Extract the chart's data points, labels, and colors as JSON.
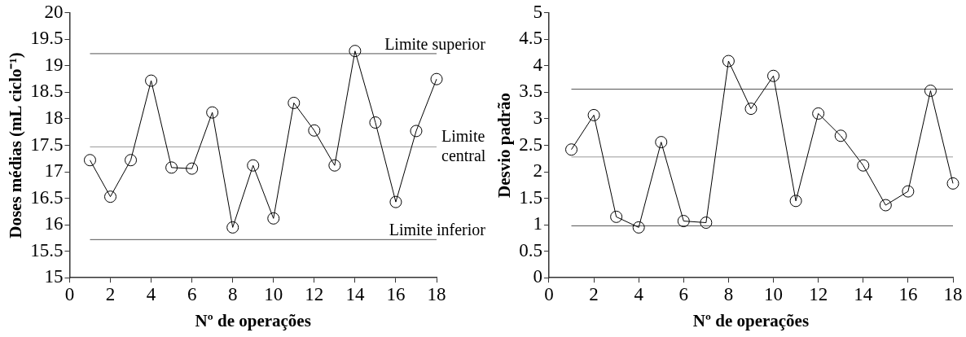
{
  "chart_data": [
    {
      "type": "line",
      "xlabel": "Nº de operações",
      "ylabel": "Doses médias (mL ciclo⁻¹)",
      "x": [
        1,
        2,
        3,
        4,
        5,
        6,
        7,
        8,
        9,
        10,
        11,
        12,
        13,
        14,
        15,
        16,
        17,
        18
      ],
      "series": [
        {
          "color": "#000000",
          "values": [
            17.22,
            16.53,
            17.22,
            18.72,
            17.08,
            17.06,
            18.12,
            15.95,
            17.12,
            16.12,
            18.3,
            17.78,
            17.12,
            19.28,
            17.93,
            16.43,
            17.77,
            18.75
          ]
        }
      ],
      "xlim": [
        0,
        18
      ],
      "xticks": [
        0,
        2,
        4,
        6,
        8,
        10,
        12,
        14,
        16,
        18
      ],
      "ylim": [
        15,
        20
      ],
      "yticks": [
        15,
        15.5,
        16,
        16.5,
        17,
        17.5,
        18,
        18.5,
        19,
        19.5,
        20
      ],
      "ref_lines": [
        {
          "axis": "y",
          "value": 19.23,
          "label": "Limite superior",
          "color": "#555555"
        },
        {
          "axis": "y",
          "value": 17.47,
          "label": "Limite central",
          "color": "#999999"
        },
        {
          "axis": "y",
          "value": 15.72,
          "label": "Limite inferior",
          "color": "#555555"
        }
      ],
      "grid": false,
      "legend": false,
      "marker": "circle",
      "line_style": "solid"
    },
    {
      "type": "line",
      "xlabel": "Nº de operações",
      "ylabel": "Desvio padrão",
      "x": [
        1,
        2,
        3,
        4,
        5,
        6,
        7,
        8,
        9,
        10,
        11,
        12,
        13,
        14,
        15,
        16,
        17,
        18
      ],
      "series": [
        {
          "color": "#000000",
          "values": [
            2.42,
            3.07,
            1.15,
            0.95,
            2.56,
            1.07,
            1.04,
            4.09,
            3.19,
            3.81,
            1.45,
            3.1,
            2.68,
            2.12,
            1.37,
            1.63,
            3.53,
            1.78
          ]
        }
      ],
      "xlim": [
        0,
        18
      ],
      "xticks": [
        0,
        2,
        4,
        6,
        8,
        10,
        12,
        14,
        16,
        18
      ],
      "ylim": [
        0,
        5
      ],
      "yticks": [
        0,
        0.5,
        1,
        1.5,
        2,
        2.5,
        3,
        3.5,
        4,
        4.5,
        5
      ],
      "ref_lines": [
        {
          "axis": "y",
          "value": 3.56,
          "color": "#555555"
        },
        {
          "axis": "y",
          "value": 2.28,
          "color": "#999999"
        },
        {
          "axis": "y",
          "value": 0.98,
          "color": "#555555"
        }
      ],
      "grid": false,
      "legend": false,
      "marker": "circle",
      "line_style": "solid"
    }
  ]
}
